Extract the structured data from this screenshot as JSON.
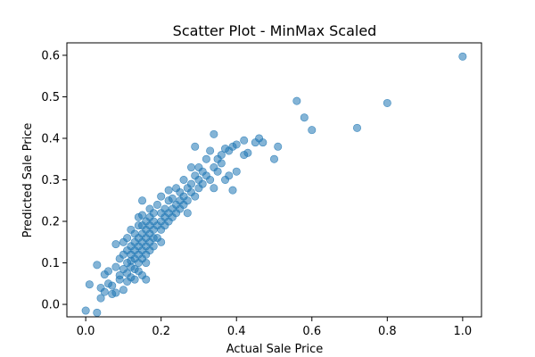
{
  "chart_data": {
    "type": "scatter",
    "title": "Scatter Plot - MinMax Scaled",
    "xlabel": "Actual Sale Price",
    "ylabel": "Predicted Sale Price",
    "xlim": [
      -0.05,
      1.05
    ],
    "ylim": [
      -0.03,
      0.63
    ],
    "xticks": [
      0.0,
      0.2,
      0.4,
      0.6,
      0.8,
      1.0
    ],
    "xtick_labels": [
      "0.0",
      "0.2",
      "0.4",
      "0.6",
      "0.8",
      "1.0"
    ],
    "yticks": [
      0.0,
      0.1,
      0.2,
      0.3,
      0.4,
      0.5,
      0.6
    ],
    "ytick_labels": [
      "0.0",
      "0.1",
      "0.2",
      "0.3",
      "0.4",
      "0.5",
      "0.6"
    ],
    "grid": false,
    "marker_color": "#1f77b4",
    "marker_alpha": 0.55,
    "points": [
      [
        0.0,
        -0.015
      ],
      [
        0.01,
        0.048
      ],
      [
        0.03,
        -0.02
      ],
      [
        0.03,
        0.095
      ],
      [
        0.04,
        0.015
      ],
      [
        0.04,
        0.04
      ],
      [
        0.05,
        0.072
      ],
      [
        0.05,
        0.03
      ],
      [
        0.06,
        0.05
      ],
      [
        0.06,
        0.08
      ],
      [
        0.07,
        0.045
      ],
      [
        0.07,
        0.025
      ],
      [
        0.08,
        0.028
      ],
      [
        0.08,
        0.09
      ],
      [
        0.08,
        0.145
      ],
      [
        0.09,
        0.06
      ],
      [
        0.09,
        0.11
      ],
      [
        0.09,
        0.07
      ],
      [
        0.1,
        0.12
      ],
      [
        0.1,
        0.085
      ],
      [
        0.1,
        0.035
      ],
      [
        0.1,
        0.15
      ],
      [
        0.11,
        0.1
      ],
      [
        0.11,
        0.13
      ],
      [
        0.11,
        0.075
      ],
      [
        0.11,
        0.16
      ],
      [
        0.11,
        0.055
      ],
      [
        0.12,
        0.14
      ],
      [
        0.12,
        0.09
      ],
      [
        0.12,
        0.12
      ],
      [
        0.12,
        0.18
      ],
      [
        0.12,
        0.065
      ],
      [
        0.12,
        0.105
      ],
      [
        0.13,
        0.15
      ],
      [
        0.13,
        0.11
      ],
      [
        0.13,
        0.13
      ],
      [
        0.13,
        0.085
      ],
      [
        0.13,
        0.17
      ],
      [
        0.13,
        0.06
      ],
      [
        0.14,
        0.14
      ],
      [
        0.14,
        0.12
      ],
      [
        0.14,
        0.16
      ],
      [
        0.14,
        0.19
      ],
      [
        0.14,
        0.1
      ],
      [
        0.14,
        0.21
      ],
      [
        0.14,
        0.08
      ],
      [
        0.15,
        0.15
      ],
      [
        0.15,
        0.13
      ],
      [
        0.15,
        0.17
      ],
      [
        0.15,
        0.25
      ],
      [
        0.15,
        0.11
      ],
      [
        0.15,
        0.19
      ],
      [
        0.15,
        0.07
      ],
      [
        0.15,
        0.215
      ],
      [
        0.16,
        0.16
      ],
      [
        0.16,
        0.14
      ],
      [
        0.16,
        0.18
      ],
      [
        0.16,
        0.12
      ],
      [
        0.16,
        0.2
      ],
      [
        0.16,
        0.1
      ],
      [
        0.16,
        0.06
      ],
      [
        0.17,
        0.17
      ],
      [
        0.17,
        0.15
      ],
      [
        0.17,
        0.19
      ],
      [
        0.17,
        0.13
      ],
      [
        0.17,
        0.21
      ],
      [
        0.17,
        0.23
      ],
      [
        0.18,
        0.18
      ],
      [
        0.18,
        0.16
      ],
      [
        0.18,
        0.2
      ],
      [
        0.18,
        0.14
      ],
      [
        0.18,
        0.22
      ],
      [
        0.19,
        0.19
      ],
      [
        0.19,
        0.24
      ],
      [
        0.19,
        0.16
      ],
      [
        0.2,
        0.2
      ],
      [
        0.2,
        0.18
      ],
      [
        0.2,
        0.22
      ],
      [
        0.2,
        0.26
      ],
      [
        0.2,
        0.15
      ],
      [
        0.21,
        0.21
      ],
      [
        0.21,
        0.23
      ],
      [
        0.21,
        0.19
      ],
      [
        0.22,
        0.22
      ],
      [
        0.22,
        0.25
      ],
      [
        0.22,
        0.2
      ],
      [
        0.22,
        0.275
      ],
      [
        0.23,
        0.23
      ],
      [
        0.23,
        0.21
      ],
      [
        0.23,
        0.255
      ],
      [
        0.24,
        0.24
      ],
      [
        0.24,
        0.22
      ],
      [
        0.24,
        0.28
      ],
      [
        0.25,
        0.25
      ],
      [
        0.25,
        0.23
      ],
      [
        0.25,
        0.27
      ],
      [
        0.26,
        0.26
      ],
      [
        0.26,
        0.24
      ],
      [
        0.26,
        0.3
      ],
      [
        0.27,
        0.25
      ],
      [
        0.27,
        0.28
      ],
      [
        0.27,
        0.22
      ],
      [
        0.28,
        0.27
      ],
      [
        0.28,
        0.33
      ],
      [
        0.28,
        0.29
      ],
      [
        0.29,
        0.38
      ],
      [
        0.29,
        0.26
      ],
      [
        0.29,
        0.31
      ],
      [
        0.3,
        0.3
      ],
      [
        0.3,
        0.28
      ],
      [
        0.3,
        0.33
      ],
      [
        0.31,
        0.29
      ],
      [
        0.31,
        0.32
      ],
      [
        0.32,
        0.35
      ],
      [
        0.32,
        0.31
      ],
      [
        0.33,
        0.3
      ],
      [
        0.33,
        0.37
      ],
      [
        0.34,
        0.33
      ],
      [
        0.34,
        0.41
      ],
      [
        0.34,
        0.28
      ],
      [
        0.35,
        0.32
      ],
      [
        0.35,
        0.35
      ],
      [
        0.36,
        0.34
      ],
      [
        0.36,
        0.36
      ],
      [
        0.37,
        0.3
      ],
      [
        0.37,
        0.375
      ],
      [
        0.38,
        0.31
      ],
      [
        0.38,
        0.37
      ],
      [
        0.39,
        0.275
      ],
      [
        0.39,
        0.38
      ],
      [
        0.4,
        0.32
      ],
      [
        0.4,
        0.385
      ],
      [
        0.42,
        0.36
      ],
      [
        0.42,
        0.395
      ],
      [
        0.43,
        0.365
      ],
      [
        0.45,
        0.39
      ],
      [
        0.46,
        0.4
      ],
      [
        0.47,
        0.39
      ],
      [
        0.5,
        0.35
      ],
      [
        0.51,
        0.38
      ],
      [
        0.56,
        0.49
      ],
      [
        0.58,
        0.45
      ],
      [
        0.6,
        0.42
      ],
      [
        0.72,
        0.425
      ],
      [
        0.8,
        0.485
      ],
      [
        1.0,
        0.597
      ]
    ]
  }
}
